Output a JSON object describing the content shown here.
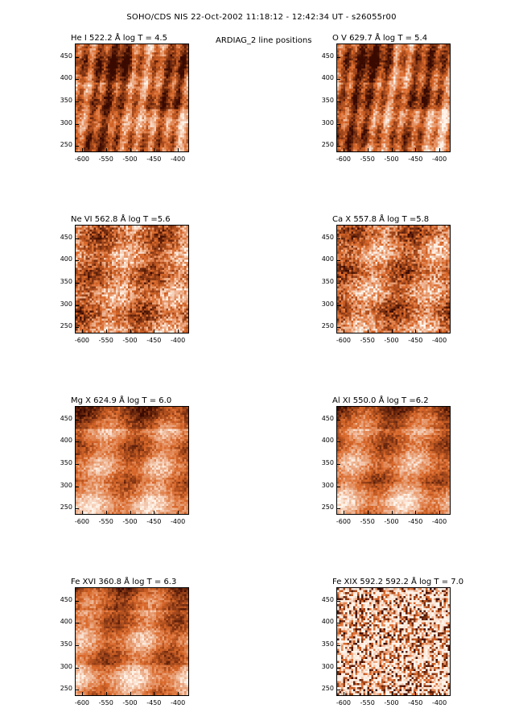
{
  "header": {
    "title": "SOHO/CDS NIS  22-Oct-2002 11:18:12 - 12:42:34 UT - s26055r00",
    "subtitle": "ARDIAG_2 line positions"
  },
  "axes": {
    "x_ticks": [
      "-600",
      "-550",
      "-500",
      "-450",
      "-400"
    ],
    "y_ticks": [
      "450",
      "400",
      "350",
      "300",
      "250"
    ],
    "x_range": [
      -615,
      -380
    ],
    "y_range": [
      240,
      480
    ]
  },
  "colormap": {
    "low": "#3a0a00",
    "mid": "#d9682a",
    "high": "#fff4ea"
  },
  "panels": [
    {
      "title": "He I  522.2 Å log T = 4.5",
      "texture": "dark-streaky"
    },
    {
      "title": "O V  629.7 Å log T = 5.4",
      "texture": "dark-streaky"
    },
    {
      "title": "Ne VI  562.8 Å log T =5.6",
      "texture": "mottled"
    },
    {
      "title": "Ca X  557.8 Å log T =5.8",
      "texture": "mottled"
    },
    {
      "title": "Mg X  624.9 Å log T = 6.0",
      "texture": "smooth"
    },
    {
      "title": "Al XI  550.0 Å log T =6.2",
      "texture": "smooth"
    },
    {
      "title": "Fe XVI  360.8 Å log T = 6.3",
      "texture": "smooth"
    },
    {
      "title": "Fe XIX 592.2  592.2 Å log T = 7.0",
      "texture": "noisy"
    }
  ]
}
